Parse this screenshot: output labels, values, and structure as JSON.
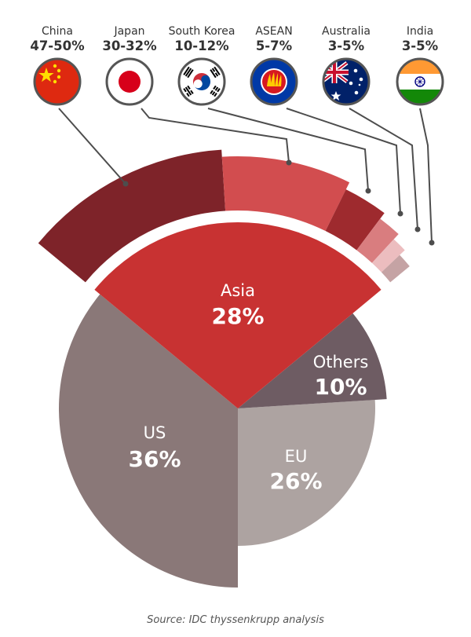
{
  "chart_data": [
    {
      "type": "pie",
      "slices": [
        {
          "label": "Asia",
          "value_label": "28%",
          "value": 28,
          "color": "#c83232"
        },
        {
          "label": "Others",
          "value_label": "10%",
          "value": 10,
          "color": "#6e5c63"
        },
        {
          "label": "EU",
          "value_label": "26%",
          "value": 26,
          "color": "#ada3a1"
        },
        {
          "label": "US",
          "value_label": "36%",
          "value": 36,
          "color": "#8a7878"
        }
      ]
    },
    {
      "type": "pie",
      "breakdown_of": "Asia",
      "slices": [
        {
          "label": "China",
          "value_label": "47-50%",
          "value": 48.5,
          "color": "#7e2329",
          "flag": "china-flag-icon"
        },
        {
          "label": "Japan",
          "value_label": "30-32%",
          "value": 31,
          "color": "#d24d4f",
          "flag": "japan-flag-icon"
        },
        {
          "label": "South Korea",
          "value_label": "10-12%",
          "value": 11,
          "color": "#9e2a2e",
          "flag": "south-korea-flag-icon"
        },
        {
          "label": "ASEAN",
          "value_label": "5-7%",
          "value": 6,
          "color": "#d97d7f",
          "flag": "asean-flag-icon"
        },
        {
          "label": "Australia",
          "value_label": "3-5%",
          "value": 4,
          "color": "#ecbdbf",
          "flag": "australia-flag-icon"
        },
        {
          "label": "India",
          "value_label": "3-5%",
          "value": 4,
          "color": "#c5a3a4",
          "flag": "india-flag-icon"
        }
      ]
    }
  ],
  "source": "Source: IDC thyssenkrupp analysis"
}
